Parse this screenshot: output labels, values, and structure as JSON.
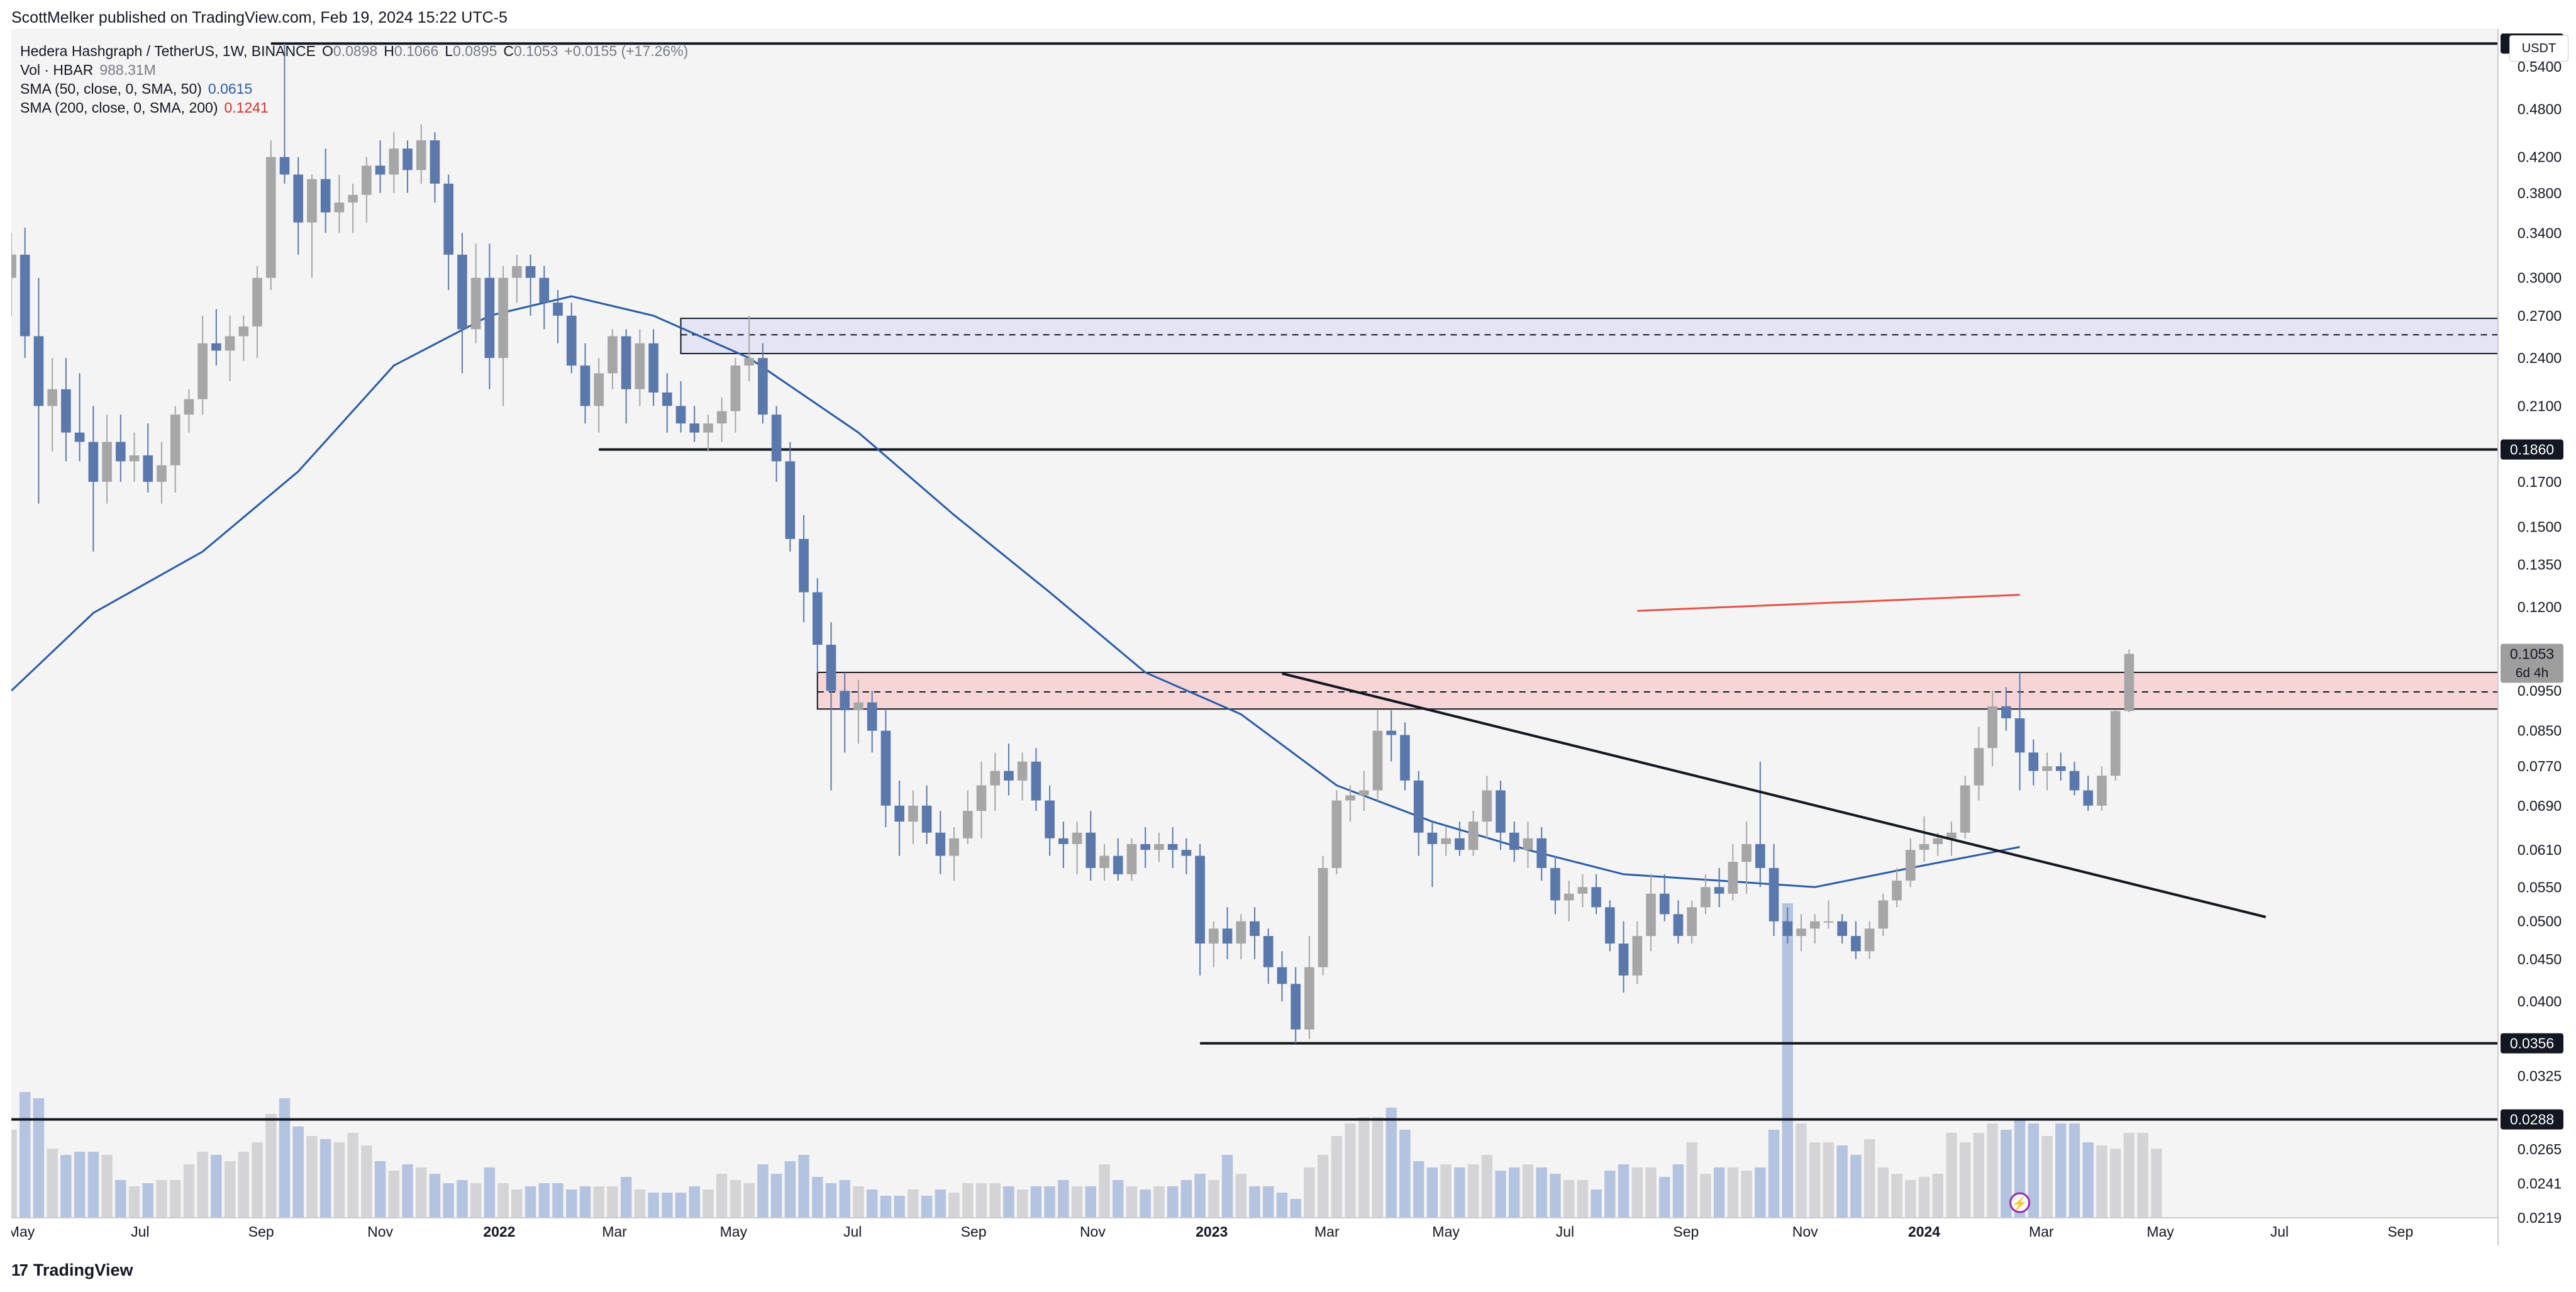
{
  "header": {
    "published": "ScottMelker published on TradingView.com, Feb 19, 2024 15:22 UTC-5"
  },
  "footer": {
    "brand": "TradingView",
    "brand_mark": "17"
  },
  "currency": "USDT",
  "legend": {
    "symbol": "Hedera Hashgraph / TetherUS, 1W, BINANCE",
    "o_label": "O",
    "o_value": "0.0898",
    "h_label": "H",
    "h_value": "0.1066",
    "l_label": "L",
    "l_value": "0.0895",
    "c_label": "C",
    "c_value": "0.1053",
    "change": "+0.0155 (+17.26%)",
    "vol_label": "Vol · HBAR",
    "vol_value": "988.31M",
    "sma50_label": "SMA (50, close, 0, SMA, 50)",
    "sma50_value": "0.0615",
    "sma200_label": "SMA (200, close, 0, SMA, 200)",
    "sma200_value": "0.1241"
  },
  "colors": {
    "up": "#a6a6a6",
    "down": "#5b78ad",
    "bg": "#f4f4f4",
    "sma50": "#2a5ca8",
    "sma200": "#e5524a",
    "red_zone_fill": "#f6d5d7",
    "blue_zone_fill": "#e4e4f4",
    "vol_up": "#d4d4d6",
    "vol_down": "#b4c3df"
  },
  "chart_data": {
    "type": "candlestick",
    "scale": "log",
    "ylim": [
      0.0219,
      0.6
    ],
    "price_ticks": [
      "0.5400",
      "0.4800",
      "0.4200",
      "0.3800",
      "0.3400",
      "0.3000",
      "0.2700",
      "0.2400",
      "0.2100",
      "0.1700",
      "0.1500",
      "0.1350",
      "0.1200",
      "0.0950",
      "0.0850",
      "0.0770",
      "0.0690",
      "0.0610",
      "0.0550",
      "0.0500",
      "0.0450",
      "0.0400",
      "0.0325",
      "0.0265",
      "0.0241",
      "0.0219"
    ],
    "x_ticks": [
      {
        "label": "May",
        "date": "2021-05-01",
        "bold": false
      },
      {
        "label": "Jul",
        "date": "2021-07-01",
        "bold": false
      },
      {
        "label": "Sep",
        "date": "2021-09-01",
        "bold": false
      },
      {
        "label": "Nov",
        "date": "2021-11-01",
        "bold": false
      },
      {
        "label": "2022",
        "date": "2022-01-01",
        "bold": true
      },
      {
        "label": "Mar",
        "date": "2022-03-01",
        "bold": false
      },
      {
        "label": "May",
        "date": "2022-05-01",
        "bold": false
      },
      {
        "label": "Jul",
        "date": "2022-07-01",
        "bold": false
      },
      {
        "label": "Sep",
        "date": "2022-09-01",
        "bold": false
      },
      {
        "label": "Nov",
        "date": "2022-11-01",
        "bold": false
      },
      {
        "label": "2023",
        "date": "2023-01-01",
        "bold": true
      },
      {
        "label": "Mar",
        "date": "2023-03-01",
        "bold": false
      },
      {
        "label": "May",
        "date": "2023-05-01",
        "bold": false
      },
      {
        "label": "Jul",
        "date": "2023-07-01",
        "bold": false
      },
      {
        "label": "Sep",
        "date": "2023-09-01",
        "bold": false
      },
      {
        "label": "Nov",
        "date": "2023-11-01",
        "bold": false
      },
      {
        "label": "2024",
        "date": "2024-01-01",
        "bold": true
      },
      {
        "label": "Mar",
        "date": "2024-03-01",
        "bold": false
      },
      {
        "label": "May",
        "date": "2024-05-01",
        "bold": false
      },
      {
        "label": "Jul",
        "date": "2024-07-01",
        "bold": false
      },
      {
        "label": "Sep",
        "date": "2024-09-01",
        "bold": false
      }
    ],
    "price_labels": [
      {
        "value": 0.576,
        "text": "0.5760"
      },
      {
        "value": 0.186,
        "text": "0.1860"
      },
      {
        "value": 0.0356,
        "text": "0.0356"
      },
      {
        "value": 0.0288,
        "text": "0.0288"
      }
    ],
    "current_price": {
      "value": 0.1053,
      "text": "0.1053",
      "countdown": "6d 4h"
    },
    "horizontal_lines": [
      {
        "value": 0.576,
        "from_date": "2021-09-06"
      },
      {
        "value": 0.186,
        "from_date": "2022-02-21"
      },
      {
        "value": 0.0356,
        "from_date": "2022-12-26"
      },
      {
        "value": 0.0288,
        "from_date": "2021-04-26"
      }
    ],
    "zones": [
      {
        "name": "resistance-upper",
        "top": 0.268,
        "bottom": 0.243,
        "mid": 0.256,
        "from_date": "2022-04-04",
        "color": "blue"
      },
      {
        "name": "resistance-lower",
        "top": 0.1,
        "bottom": 0.0903,
        "mid": 0.0947,
        "from_date": "2022-06-13",
        "color": "red"
      }
    ],
    "trendline": {
      "from_date": "2023-02-06",
      "from_value": 0.0997,
      "to_date": "2024-06-24",
      "to_value": 0.0506
    },
    "sma200_segment": {
      "from_date": "2023-08-07",
      "from_value": 0.1187,
      "to_date": "2024-02-19",
      "to_value": 0.1241
    },
    "candles_start_date": "2021-04-26",
    "candles": [
      [
        0.3,
        0.34,
        0.27,
        0.32
      ],
      [
        0.32,
        0.345,
        0.24,
        0.255
      ],
      [
        0.255,
        0.3,
        0.16,
        0.21
      ],
      [
        0.21,
        0.24,
        0.185,
        0.22
      ],
      [
        0.22,
        0.24,
        0.18,
        0.195
      ],
      [
        0.195,
        0.23,
        0.18,
        0.19
      ],
      [
        0.19,
        0.21,
        0.14,
        0.17
      ],
      [
        0.17,
        0.205,
        0.16,
        0.19
      ],
      [
        0.19,
        0.205,
        0.17,
        0.18
      ],
      [
        0.18,
        0.195,
        0.17,
        0.183
      ],
      [
        0.183,
        0.2,
        0.165,
        0.17
      ],
      [
        0.17,
        0.19,
        0.16,
        0.178
      ],
      [
        0.178,
        0.21,
        0.165,
        0.205
      ],
      [
        0.205,
        0.22,
        0.195,
        0.214
      ],
      [
        0.214,
        0.27,
        0.205,
        0.25
      ],
      [
        0.25,
        0.275,
        0.235,
        0.245
      ],
      [
        0.245,
        0.27,
        0.225,
        0.255
      ],
      [
        0.255,
        0.27,
        0.238,
        0.262
      ],
      [
        0.262,
        0.31,
        0.24,
        0.3
      ],
      [
        0.3,
        0.44,
        0.29,
        0.42
      ],
      [
        0.42,
        0.576,
        0.39,
        0.4
      ],
      [
        0.4,
        0.42,
        0.32,
        0.35
      ],
      [
        0.35,
        0.4,
        0.3,
        0.395
      ],
      [
        0.395,
        0.43,
        0.34,
        0.36
      ],
      [
        0.36,
        0.4,
        0.34,
        0.37
      ],
      [
        0.37,
        0.39,
        0.34,
        0.378
      ],
      [
        0.378,
        0.42,
        0.35,
        0.41
      ],
      [
        0.41,
        0.44,
        0.38,
        0.4
      ],
      [
        0.4,
        0.45,
        0.38,
        0.43
      ],
      [
        0.43,
        0.44,
        0.38,
        0.405
      ],
      [
        0.405,
        0.46,
        0.39,
        0.44
      ],
      [
        0.44,
        0.45,
        0.37,
        0.39
      ],
      [
        0.39,
        0.4,
        0.29,
        0.32
      ],
      [
        0.32,
        0.34,
        0.23,
        0.26
      ],
      [
        0.26,
        0.33,
        0.25,
        0.3
      ],
      [
        0.3,
        0.33,
        0.22,
        0.24
      ],
      [
        0.24,
        0.31,
        0.21,
        0.3
      ],
      [
        0.3,
        0.32,
        0.28,
        0.31
      ],
      [
        0.31,
        0.32,
        0.27,
        0.3
      ],
      [
        0.3,
        0.31,
        0.26,
        0.28
      ],
      [
        0.28,
        0.29,
        0.25,
        0.27
      ],
      [
        0.27,
        0.28,
        0.23,
        0.235
      ],
      [
        0.235,
        0.25,
        0.2,
        0.21
      ],
      [
        0.21,
        0.24,
        0.195,
        0.23
      ],
      [
        0.23,
        0.26,
        0.22,
        0.255
      ],
      [
        0.255,
        0.26,
        0.2,
        0.22
      ],
      [
        0.22,
        0.26,
        0.21,
        0.25
      ],
      [
        0.25,
        0.26,
        0.21,
        0.218
      ],
      [
        0.218,
        0.23,
        0.195,
        0.21
      ],
      [
        0.21,
        0.225,
        0.195,
        0.2
      ],
      [
        0.2,
        0.21,
        0.19,
        0.195
      ],
      [
        0.195,
        0.205,
        0.185,
        0.2
      ],
      [
        0.2,
        0.215,
        0.19,
        0.207
      ],
      [
        0.207,
        0.24,
        0.195,
        0.235
      ],
      [
        0.235,
        0.27,
        0.225,
        0.24
      ],
      [
        0.24,
        0.25,
        0.2,
        0.205
      ],
      [
        0.205,
        0.21,
        0.17,
        0.18
      ],
      [
        0.18,
        0.19,
        0.14,
        0.145
      ],
      [
        0.145,
        0.155,
        0.115,
        0.125
      ],
      [
        0.125,
        0.13,
        0.1,
        0.108
      ],
      [
        0.108,
        0.115,
        0.072,
        0.095
      ],
      [
        0.095,
        0.1,
        0.08,
        0.09
      ],
      [
        0.09,
        0.098,
        0.082,
        0.092
      ],
      [
        0.092,
        0.095,
        0.08,
        0.085
      ],
      [
        0.085,
        0.09,
        0.065,
        0.069
      ],
      [
        0.069,
        0.074,
        0.06,
        0.066
      ],
      [
        0.066,
        0.072,
        0.062,
        0.069
      ],
      [
        0.069,
        0.073,
        0.062,
        0.064
      ],
      [
        0.064,
        0.068,
        0.057,
        0.06
      ],
      [
        0.06,
        0.065,
        0.056,
        0.063
      ],
      [
        0.063,
        0.072,
        0.062,
        0.068
      ],
      [
        0.068,
        0.078,
        0.063,
        0.073
      ],
      [
        0.073,
        0.08,
        0.068,
        0.076
      ],
      [
        0.076,
        0.082,
        0.071,
        0.074
      ],
      [
        0.074,
        0.08,
        0.07,
        0.078
      ],
      [
        0.078,
        0.081,
        0.068,
        0.07
      ],
      [
        0.07,
        0.073,
        0.06,
        0.063
      ],
      [
        0.063,
        0.066,
        0.058,
        0.062
      ],
      [
        0.062,
        0.066,
        0.057,
        0.064
      ],
      [
        0.064,
        0.068,
        0.056,
        0.058
      ],
      [
        0.058,
        0.062,
        0.056,
        0.06
      ],
      [
        0.06,
        0.063,
        0.056,
        0.057
      ],
      [
        0.057,
        0.063,
        0.056,
        0.062
      ],
      [
        0.062,
        0.065,
        0.058,
        0.061
      ],
      [
        0.061,
        0.064,
        0.059,
        0.062
      ],
      [
        0.062,
        0.065,
        0.058,
        0.061
      ],
      [
        0.061,
        0.063,
        0.057,
        0.06
      ],
      [
        0.06,
        0.062,
        0.043,
        0.047
      ],
      [
        0.047,
        0.05,
        0.044,
        0.049
      ],
      [
        0.049,
        0.052,
        0.045,
        0.047
      ],
      [
        0.047,
        0.051,
        0.045,
        0.05
      ],
      [
        0.05,
        0.052,
        0.045,
        0.048
      ],
      [
        0.048,
        0.049,
        0.042,
        0.044
      ],
      [
        0.044,
        0.046,
        0.04,
        0.042
      ],
      [
        0.042,
        0.044,
        0.0356,
        0.037
      ],
      [
        0.037,
        0.048,
        0.036,
        0.044
      ],
      [
        0.044,
        0.06,
        0.043,
        0.058
      ],
      [
        0.058,
        0.072,
        0.057,
        0.07
      ],
      [
        0.07,
        0.073,
        0.066,
        0.071
      ],
      [
        0.071,
        0.076,
        0.068,
        0.072
      ],
      [
        0.072,
        0.09,
        0.07,
        0.085
      ],
      [
        0.085,
        0.09,
        0.078,
        0.084
      ],
      [
        0.084,
        0.087,
        0.072,
        0.074
      ],
      [
        0.074,
        0.076,
        0.06,
        0.064
      ],
      [
        0.064,
        0.066,
        0.055,
        0.062
      ],
      [
        0.062,
        0.065,
        0.06,
        0.063
      ],
      [
        0.063,
        0.066,
        0.06,
        0.061
      ],
      [
        0.061,
        0.068,
        0.06,
        0.066
      ],
      [
        0.066,
        0.075,
        0.063,
        0.072
      ],
      [
        0.072,
        0.074,
        0.061,
        0.064
      ],
      [
        0.064,
        0.066,
        0.059,
        0.061
      ],
      [
        0.061,
        0.066,
        0.058,
        0.063
      ],
      [
        0.063,
        0.065,
        0.056,
        0.058
      ],
      [
        0.058,
        0.06,
        0.051,
        0.053
      ],
      [
        0.053,
        0.056,
        0.05,
        0.054
      ],
      [
        0.054,
        0.057,
        0.052,
        0.055
      ],
      [
        0.055,
        0.057,
        0.051,
        0.052
      ],
      [
        0.052,
        0.053,
        0.046,
        0.047
      ],
      [
        0.047,
        0.05,
        0.041,
        0.043
      ],
      [
        0.043,
        0.05,
        0.042,
        0.048
      ],
      [
        0.048,
        0.057,
        0.046,
        0.054
      ],
      [
        0.054,
        0.057,
        0.05,
        0.051
      ],
      [
        0.051,
        0.053,
        0.047,
        0.048
      ],
      [
        0.048,
        0.053,
        0.047,
        0.052
      ],
      [
        0.052,
        0.057,
        0.051,
        0.055
      ],
      [
        0.055,
        0.058,
        0.052,
        0.054
      ],
      [
        0.054,
        0.062,
        0.053,
        0.059
      ],
      [
        0.059,
        0.066,
        0.054,
        0.062
      ],
      [
        0.062,
        0.078,
        0.055,
        0.058
      ],
      [
        0.058,
        0.062,
        0.048,
        0.05
      ],
      [
        0.05,
        0.052,
        0.047,
        0.048
      ],
      [
        0.048,
        0.051,
        0.046,
        0.049
      ],
      [
        0.049,
        0.051,
        0.047,
        0.05
      ],
      [
        0.05,
        0.053,
        0.049,
        0.05
      ],
      [
        0.05,
        0.051,
        0.047,
        0.048
      ],
      [
        0.048,
        0.05,
        0.045,
        0.046
      ],
      [
        0.046,
        0.05,
        0.045,
        0.049
      ],
      [
        0.049,
        0.054,
        0.048,
        0.053
      ],
      [
        0.053,
        0.058,
        0.052,
        0.056
      ],
      [
        0.056,
        0.063,
        0.055,
        0.061
      ],
      [
        0.061,
        0.067,
        0.059,
        0.062
      ],
      [
        0.062,
        0.064,
        0.06,
        0.063
      ],
      [
        0.063,
        0.066,
        0.06,
        0.064
      ],
      [
        0.064,
        0.075,
        0.063,
        0.073
      ],
      [
        0.073,
        0.086,
        0.07,
        0.081
      ],
      [
        0.081,
        0.095,
        0.077,
        0.091
      ],
      [
        0.091,
        0.096,
        0.085,
        0.088
      ],
      [
        0.088,
        0.1,
        0.072,
        0.08
      ],
      [
        0.08,
        0.083,
        0.073,
        0.076
      ],
      [
        0.076,
        0.08,
        0.072,
        0.077
      ],
      [
        0.077,
        0.08,
        0.074,
        0.076
      ],
      [
        0.076,
        0.078,
        0.071,
        0.072
      ],
      [
        0.072,
        0.075,
        0.068,
        0.069
      ],
      [
        0.069,
        0.077,
        0.068,
        0.075
      ],
      [
        0.075,
        0.09,
        0.074,
        0.0898
      ],
      [
        0.0898,
        0.1066,
        0.0895,
        0.1053
      ]
    ],
    "volume_scale_max": 100,
    "volumes": [
      28,
      40,
      38,
      22,
      20,
      21,
      21,
      20,
      12,
      10,
      11,
      12,
      12,
      17,
      21,
      20,
      18,
      21,
      24,
      33,
      38,
      29,
      26,
      25,
      24,
      27,
      23,
      18,
      15,
      17,
      16,
      14,
      11,
      12,
      11,
      16,
      11,
      9,
      10,
      11,
      11,
      9,
      10,
      10,
      10,
      13,
      9,
      8,
      8,
      8,
      10,
      9,
      14,
      12,
      11,
      17,
      14,
      18,
      20,
      13,
      11,
      12,
      10,
      9,
      7,
      7,
      9,
      7,
      9,
      8,
      11,
      11,
      11,
      10,
      9,
      10,
      10,
      12,
      10,
      10,
      17,
      12,
      10,
      9,
      10,
      10,
      12,
      14,
      12,
      20,
      14,
      10,
      10,
      8,
      6,
      16,
      20,
      26,
      30,
      32,
      32,
      35,
      28,
      18,
      16,
      17,
      16,
      17,
      20,
      15,
      16,
      17,
      16,
      14,
      12,
      12,
      9,
      15,
      17,
      16,
      16,
      13,
      17,
      24,
      14,
      16,
      16,
      15,
      16,
      28,
      100,
      30,
      24,
      24,
      23,
      20,
      25,
      16,
      14,
      12,
      13,
      14,
      27,
      24,
      27,
      30,
      28,
      31,
      30,
      26,
      30,
      30,
      24,
      23,
      22,
      27,
      27,
      22
    ],
    "volume_up": []
  }
}
